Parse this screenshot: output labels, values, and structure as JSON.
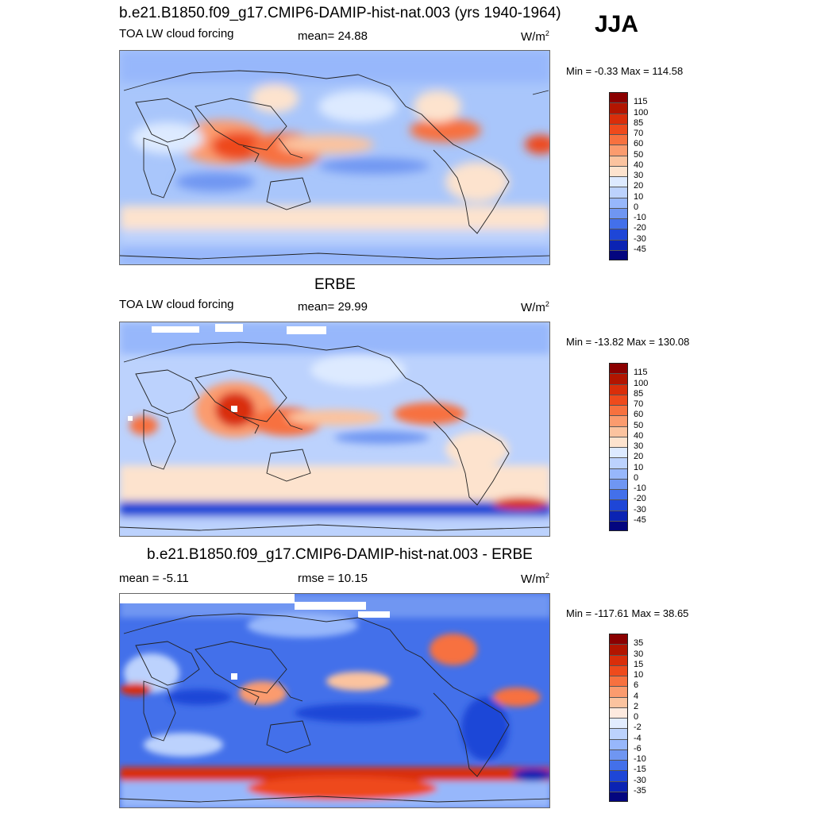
{
  "season": "JJA",
  "panels": [
    {
      "id": "model",
      "title": "b.e21.B1850.f09_g17.CMIP6-DAMIP-hist-nat.003 (yrs 1940-1964)",
      "left_label": "TOA LW cloud forcing",
      "stat_label": "mean=  24.88",
      "unit_base": "W/m",
      "unit_exp": "2",
      "minmax": "Min =  -0.33 Max = 114.58",
      "colorbar_labels": [
        "115",
        "100",
        "85",
        "70",
        "60",
        "50",
        "40",
        "30",
        "20",
        "10",
        "0",
        "-10",
        "-20",
        "-30",
        "-45"
      ],
      "colorbar_colors": [
        "#8b0000",
        "#b21500",
        "#d92e0a",
        "#ee4a1c",
        "#f7713f",
        "#fb9b6e",
        "#fbc39f",
        "#fde3ce",
        "#ddeaff",
        "#bcd2fd",
        "#97b7fb",
        "#6f96f2",
        "#4370ea",
        "#1e46d7",
        "#0b23b3",
        "#04067f"
      ]
    },
    {
      "id": "obs",
      "title": "ERBE",
      "left_label": "TOA LW cloud forcing",
      "stat_label": "mean=  29.99",
      "unit_base": "W/m",
      "unit_exp": "2",
      "minmax": "Min = -13.82 Max = 130.08",
      "colorbar_labels": [
        "115",
        "100",
        "85",
        "70",
        "60",
        "50",
        "40",
        "30",
        "20",
        "10",
        "0",
        "-10",
        "-20",
        "-30",
        "-45"
      ],
      "colorbar_colors": [
        "#8b0000",
        "#b21500",
        "#d92e0a",
        "#ee4a1c",
        "#f7713f",
        "#fb9b6e",
        "#fbc39f",
        "#fde3ce",
        "#ddeaff",
        "#bcd2fd",
        "#97b7fb",
        "#6f96f2",
        "#4370ea",
        "#1e46d7",
        "#0b23b3",
        "#04067f"
      ]
    },
    {
      "id": "diff",
      "title": "b.e21.B1850.f09_g17.CMIP6-DAMIP-hist-nat.003 - ERBE",
      "left_label": "mean =  -5.11",
      "stat_label": "rmse =  10.15",
      "unit_base": "W/m",
      "unit_exp": "2",
      "minmax": "Min = -117.61 Max =  38.65",
      "colorbar_labels": [
        "35",
        "30",
        "15",
        "10",
        "6",
        "4",
        "2",
        "0",
        "-2",
        "-4",
        "-6",
        "-10",
        "-15",
        "-30",
        "-35"
      ],
      "colorbar_colors": [
        "#8b0000",
        "#b21500",
        "#d92e0a",
        "#ee4a1c",
        "#f7713f",
        "#fb9b6e",
        "#fbc39f",
        "#fdeadf",
        "#e2ecff",
        "#bcd2fd",
        "#97b7fb",
        "#6f96f2",
        "#4370ea",
        "#1e46d7",
        "#0b23b3",
        "#04067f"
      ]
    }
  ]
}
